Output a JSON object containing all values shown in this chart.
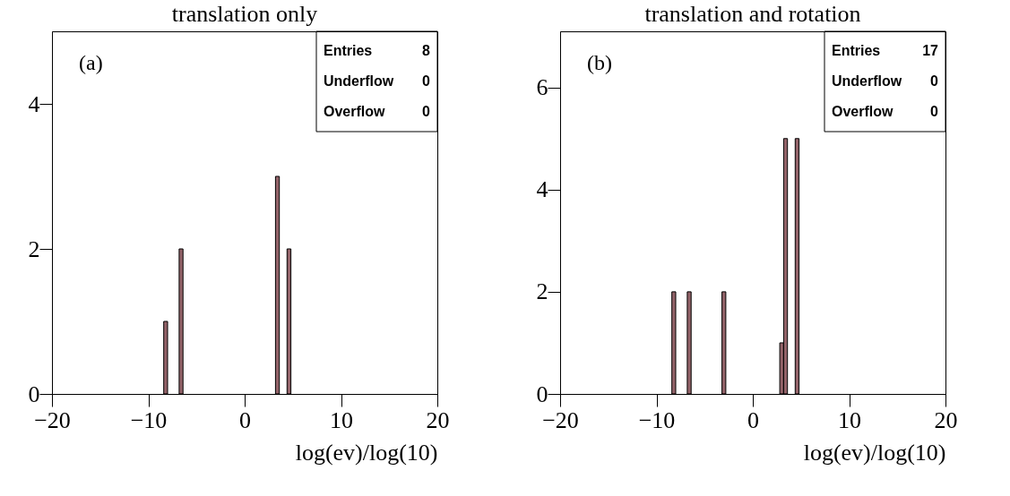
{
  "chart_data": [
    {
      "type": "histogram",
      "title": "translation only",
      "xlabel": "log(ev)/log(10)",
      "bins": [
        -8.4,
        -8.0,
        -6.8,
        -6.4,
        3.2,
        3.6,
        4.4,
        4.8
      ],
      "values": [
        1,
        0,
        2,
        0,
        3,
        0,
        2
      ],
      "color": "#936369",
      "xlim": [
        -20,
        20
      ],
      "xticks": [
        -20,
        -10,
        0,
        10,
        20
      ],
      "ylim": [
        0,
        5
      ],
      "yticks": [
        0,
        2,
        4
      ],
      "annotations": [
        "(a)",
        "Entries",
        "8",
        "Underflow",
        "0",
        "Overflow",
        "0"
      ]
    },
    {
      "type": "histogram",
      "title": "translation and rotation",
      "xlabel": "log(ev)/log(10)",
      "bins": [
        -8.4,
        -8.0,
        -6.8,
        -6.4,
        -3.2,
        -2.8,
        2.8,
        3.2,
        3.6,
        4.4,
        4.8
      ],
      "values": [
        2,
        0,
        2,
        0,
        2,
        0,
        1,
        5,
        0,
        5
      ],
      "color": "#936369",
      "xlim": [
        -20,
        20
      ],
      "xticks": [
        -20,
        -10,
        0,
        10,
        20
      ],
      "ylim": [
        0,
        7.1
      ],
      "yticks": [
        0,
        2,
        4,
        6
      ],
      "annotations": [
        "(b)",
        "Entries",
        "17",
        "Underflow",
        "0",
        "Overflow",
        "0"
      ]
    }
  ]
}
